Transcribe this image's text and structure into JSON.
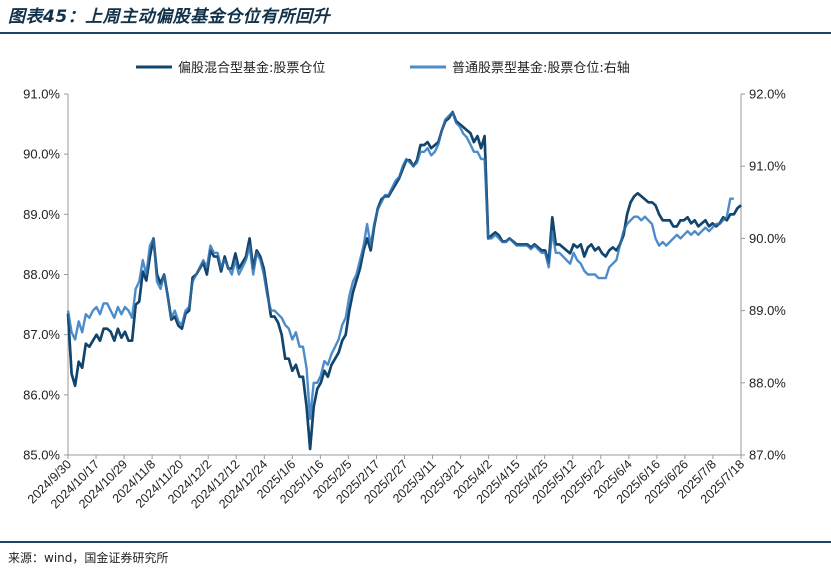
{
  "header": {
    "title": "图表45：上周主动偏股基金仓位有所回升"
  },
  "footer": {
    "source": "来源：wind，国金证券研究所"
  },
  "chart_data": {
    "type": "line",
    "title": "",
    "legend_position": "top",
    "grid": false,
    "left_axis": {
      "ylim": [
        85.0,
        91.0
      ],
      "ticks": [
        85.0,
        86.0,
        87.0,
        88.0,
        89.0,
        90.0,
        91.0
      ],
      "format": "percent1"
    },
    "right_axis": {
      "ylim": [
        87.0,
        92.0
      ],
      "ticks": [
        87.0,
        88.0,
        89.0,
        90.0,
        91.0,
        92.0
      ],
      "format": "percent1"
    },
    "x_tick_labels": [
      "2024/9/30",
      "2024/10/17",
      "2024/10/29",
      "2024/11/8",
      "2024/11/20",
      "2024/12/2",
      "2024/12/12",
      "2024/12/24",
      "2025/1/6",
      "2025/1/16",
      "2025/2/5",
      "2025/2/17",
      "2025/2/27",
      "2025/3/11",
      "2025/3/21",
      "2025/4/2",
      "2025/4/15",
      "2025/4/25",
      "2025/5/12",
      "2025/5/22",
      "2025/6/4",
      "2025/6/16",
      "2025/6/26",
      "2025/7/8",
      "2025/7/18"
    ],
    "series": [
      {
        "name": "偏股混合型基金:股票仓位",
        "axis": "left",
        "color": "#12466e",
        "values": [
          87.35,
          86.35,
          86.15,
          86.55,
          86.45,
          86.85,
          86.8,
          86.9,
          87.0,
          86.9,
          87.1,
          87.1,
          87.05,
          86.9,
          87.1,
          86.95,
          87.05,
          86.9,
          86.9,
          87.5,
          87.55,
          88.05,
          87.9,
          88.3,
          88.6,
          88.0,
          87.85,
          88.0,
          87.65,
          87.25,
          87.3,
          87.15,
          87.1,
          87.35,
          87.4,
          87.95,
          88.0,
          88.1,
          88.2,
          88.0,
          88.4,
          88.3,
          88.3,
          88.05,
          88.3,
          88.1,
          88.1,
          88.35,
          88.1,
          88.2,
          88.3,
          88.6,
          88.1,
          88.4,
          88.3,
          88.1,
          87.7,
          87.3,
          87.3,
          87.2,
          87.0,
          86.6,
          86.6,
          86.4,
          86.5,
          86.3,
          86.3,
          85.8,
          85.1,
          85.8,
          86.1,
          86.2,
          86.4,
          86.3,
          86.5,
          86.6,
          86.7,
          86.9,
          87.0,
          87.4,
          87.7,
          87.9,
          88.1,
          88.4,
          88.6,
          88.4,
          88.8,
          89.1,
          89.25,
          89.3,
          89.3,
          89.4,
          89.5,
          89.6,
          89.75,
          89.9,
          89.9,
          89.8,
          89.9,
          90.15,
          90.15,
          90.2,
          90.1,
          90.15,
          90.2,
          90.4,
          90.55,
          90.6,
          90.7,
          90.55,
          90.5,
          90.45,
          90.4,
          90.35,
          90.2,
          90.3,
          90.1,
          90.3,
          88.6,
          88.65,
          88.7,
          88.65,
          88.55,
          88.55,
          88.6,
          88.55,
          88.5,
          88.5,
          88.5,
          88.5,
          88.45,
          88.5,
          88.45,
          88.4,
          88.4,
          88.2,
          88.95,
          88.5,
          88.5,
          88.45,
          88.4,
          88.35,
          88.5,
          88.45,
          88.5,
          88.3,
          88.45,
          88.5,
          88.4,
          88.45,
          88.35,
          88.3,
          88.4,
          88.45,
          88.4,
          88.5,
          88.65,
          89.0,
          89.2,
          89.3,
          89.35,
          89.3,
          89.25,
          89.2,
          89.2,
          89.15,
          89.0,
          88.9,
          88.9,
          88.9,
          88.8,
          88.8,
          88.9,
          88.9,
          88.95,
          88.85,
          88.9,
          88.8,
          88.85,
          88.9,
          88.8,
          88.85,
          88.8,
          88.85,
          88.95,
          88.9,
          89.0,
          89.0,
          89.1,
          89.15
        ]
      },
      {
        "name": "普通股票型基金:股票仓位:右轴",
        "axis": "right",
        "color": "#4d8ccb",
        "values": [
          89.0,
          88.7,
          88.6,
          88.85,
          88.7,
          88.95,
          88.9,
          89.0,
          89.05,
          88.95,
          89.1,
          89.1,
          89.0,
          88.9,
          89.05,
          88.95,
          89.05,
          89.0,
          88.9,
          89.3,
          89.4,
          89.7,
          89.5,
          89.9,
          90.0,
          89.4,
          89.3,
          89.5,
          89.2,
          88.9,
          89.0,
          88.85,
          88.8,
          89.0,
          89.05,
          89.4,
          89.5,
          89.6,
          89.7,
          89.6,
          89.9,
          89.8,
          89.8,
          89.6,
          89.7,
          89.6,
          89.5,
          89.7,
          89.5,
          89.6,
          89.7,
          89.9,
          89.5,
          89.8,
          89.7,
          89.5,
          89.2,
          89.0,
          89.0,
          88.95,
          88.9,
          88.8,
          88.75,
          88.6,
          88.7,
          88.5,
          88.5,
          88.2,
          87.5,
          88.0,
          88.0,
          88.1,
          88.3,
          88.25,
          88.4,
          88.5,
          88.6,
          88.8,
          88.9,
          89.2,
          89.4,
          89.5,
          89.7,
          89.9,
          90.2,
          89.9,
          90.2,
          90.4,
          90.5,
          90.6,
          90.6,
          90.7,
          90.8,
          90.85,
          91.0,
          91.1,
          91.05,
          91.0,
          91.05,
          91.2,
          91.2,
          91.25,
          91.15,
          91.2,
          91.3,
          91.5,
          91.65,
          91.7,
          91.75,
          91.6,
          91.55,
          91.45,
          91.4,
          91.3,
          91.2,
          91.2,
          91.1,
          91.1,
          90.0,
          90.0,
          90.05,
          90.0,
          89.95,
          89.95,
          90.0,
          89.95,
          89.9,
          89.9,
          89.9,
          89.9,
          89.85,
          89.9,
          89.85,
          89.8,
          89.8,
          89.6,
          90.1,
          89.8,
          89.8,
          89.75,
          89.7,
          89.65,
          89.8,
          89.7,
          89.65,
          89.55,
          89.5,
          89.5,
          89.5,
          89.45,
          89.45,
          89.45,
          89.6,
          89.65,
          89.7,
          89.9,
          90.1,
          90.2,
          90.25,
          90.3,
          90.3,
          90.25,
          90.3,
          90.25,
          90.2,
          90.0,
          89.9,
          89.95,
          89.9,
          89.95,
          90.0,
          90.05,
          90.0,
          90.05,
          90.1,
          90.05,
          90.1,
          90.05,
          90.1,
          90.15,
          90.1,
          90.15,
          90.2,
          90.2,
          90.25,
          90.3,
          90.55,
          90.55
        ]
      }
    ]
  }
}
